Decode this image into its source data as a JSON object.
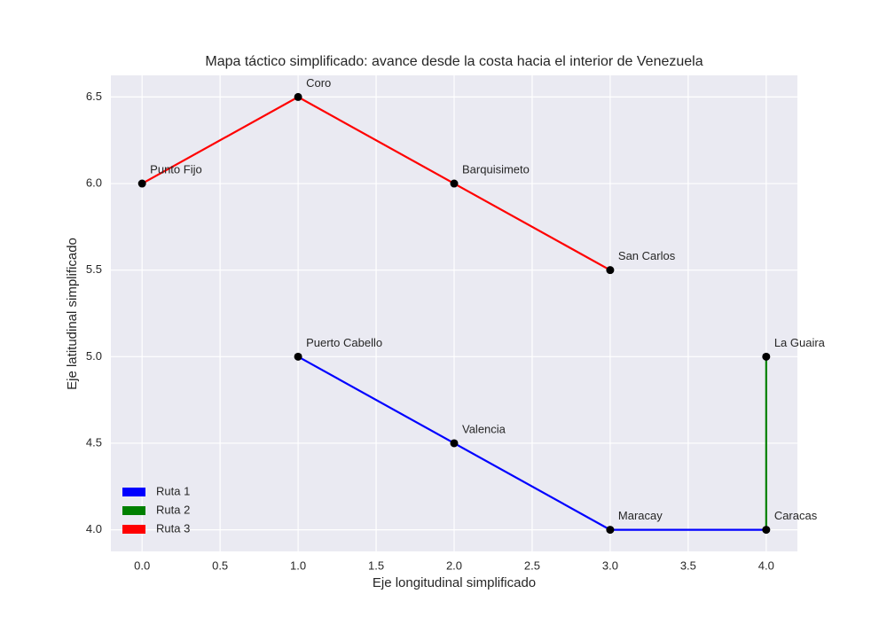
{
  "chart_data": {
    "type": "line",
    "title": "Mapa táctico simplificado: avance desde la costa hacia el interior de Venezuela",
    "x_label": "Eje longitudinal simplificado",
    "y_label": "Eje latitudinal simplificado",
    "xlim": [
      -0.2,
      4.2
    ],
    "ylim": [
      3.875,
      6.625
    ],
    "xticks": [
      {
        "value": 0,
        "label": "0.0"
      },
      {
        "value": 0.5,
        "label": "0.5"
      },
      {
        "value": 1,
        "label": "1.0"
      },
      {
        "value": 1.5,
        "label": "1.5"
      },
      {
        "value": 2,
        "label": "2.0"
      },
      {
        "value": 2.5,
        "label": "2.5"
      },
      {
        "value": 3,
        "label": "3.0"
      },
      {
        "value": 3.5,
        "label": "3.5"
      },
      {
        "value": 4,
        "label": "4.0"
      }
    ],
    "yticks": [
      {
        "value": 4,
        "label": "4.0"
      },
      {
        "value": 4.5,
        "label": "4.5"
      },
      {
        "value": 5,
        "label": "5.0"
      },
      {
        "value": 5.5,
        "label": "5.5"
      },
      {
        "value": 6,
        "label": "6.0"
      },
      {
        "value": 6.5,
        "label": "6.5"
      }
    ],
    "grid": true,
    "legend_position": "lower left",
    "series": [
      {
        "name": "Ruta 1",
        "color": "#0000ff",
        "x": [
          1,
          2,
          3,
          4
        ],
        "values": [
          5,
          4.5,
          4,
          4
        ]
      },
      {
        "name": "Ruta 2",
        "color": "#008000",
        "x": [
          4,
          4
        ],
        "values": [
          4,
          5
        ]
      },
      {
        "name": "Ruta 3",
        "color": "#ff0000",
        "x": [
          0,
          1,
          2,
          3
        ],
        "values": [
          6,
          6.5,
          6,
          5.5
        ]
      }
    ],
    "point_color": "#000000",
    "points": [
      {
        "name": "Puerto Cabello",
        "x": 1,
        "y": 5
      },
      {
        "name": "Valencia",
        "x": 2,
        "y": 4.5
      },
      {
        "name": "Maracay",
        "x": 3,
        "y": 4
      },
      {
        "name": "Caracas",
        "x": 4,
        "y": 4
      },
      {
        "name": "La Guaira",
        "x": 4,
        "y": 5
      },
      {
        "name": "Punto Fijo",
        "x": 0,
        "y": 6
      },
      {
        "name": "Coro",
        "x": 1,
        "y": 6.5
      },
      {
        "name": "Barquisimeto",
        "x": 2,
        "y": 6
      },
      {
        "name": "San Carlos",
        "x": 3,
        "y": 5.5
      }
    ]
  }
}
